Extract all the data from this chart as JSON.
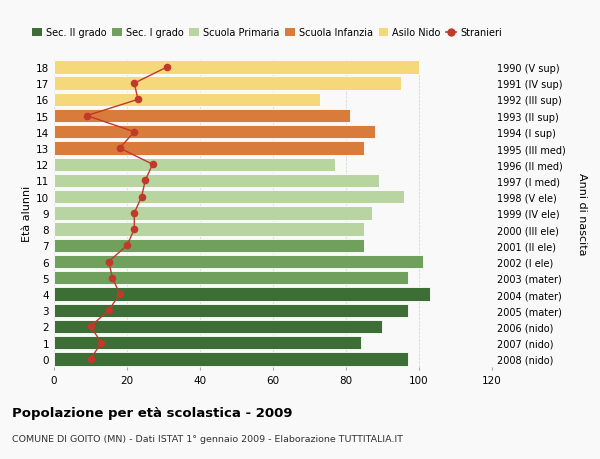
{
  "ages": [
    18,
    17,
    16,
    15,
    14,
    13,
    12,
    11,
    10,
    9,
    8,
    7,
    6,
    5,
    4,
    3,
    2,
    1,
    0
  ],
  "years": [
    "1990 (V sup)",
    "1991 (IV sup)",
    "1992 (III sup)",
    "1993 (II sup)",
    "1994 (I sup)",
    "1995 (III med)",
    "1996 (II med)",
    "1997 (I med)",
    "1998 (V ele)",
    "1999 (IV ele)",
    "2000 (III ele)",
    "2001 (II ele)",
    "2002 (I ele)",
    "2003 (mater)",
    "2004 (mater)",
    "2005 (mater)",
    "2006 (nido)",
    "2007 (nido)",
    "2008 (nido)"
  ],
  "bar_values": [
    97,
    84,
    90,
    97,
    103,
    97,
    101,
    85,
    85,
    87,
    96,
    89,
    77,
    85,
    88,
    81,
    73,
    95,
    100
  ],
  "bar_colors": [
    "#3d6e35",
    "#3d6e35",
    "#3d6e35",
    "#3d6e35",
    "#3d6e35",
    "#6fa05c",
    "#6fa05c",
    "#6fa05c",
    "#b8d4a0",
    "#b8d4a0",
    "#b8d4a0",
    "#b8d4a0",
    "#b8d4a0",
    "#d97b3a",
    "#d97b3a",
    "#d97b3a",
    "#f5d87a",
    "#f5d87a",
    "#f5d87a"
  ],
  "stranieri_values": [
    10,
    13,
    10,
    15,
    18,
    16,
    15,
    20,
    22,
    22,
    24,
    25,
    27,
    18,
    22,
    9,
    23,
    22,
    31
  ],
  "legend_labels": [
    "Sec. II grado",
    "Sec. I grado",
    "Scuola Primaria",
    "Scuola Infanzia",
    "Asilo Nido",
    "Stranieri"
  ],
  "legend_colors": [
    "#3d6e35",
    "#6fa05c",
    "#b8d4a0",
    "#d97b3a",
    "#f5d87a",
    "#c0392b"
  ],
  "ylabel_left": "Età alunni",
  "ylabel_right": "Anni di nascita",
  "title": "Popolazione per età scolastica - 2009",
  "subtitle": "COMUNE DI GOITO (MN) - Dati ISTAT 1° gennaio 2009 - Elaborazione TUTTITALIA.IT",
  "xlim": [
    0,
    120
  ],
  "xticks": [
    0,
    20,
    40,
    60,
    80,
    100,
    120
  ],
  "stranieri_color": "#c0392b",
  "background_color": "#f9f9f9",
  "grid_color": "#d0d0d0"
}
